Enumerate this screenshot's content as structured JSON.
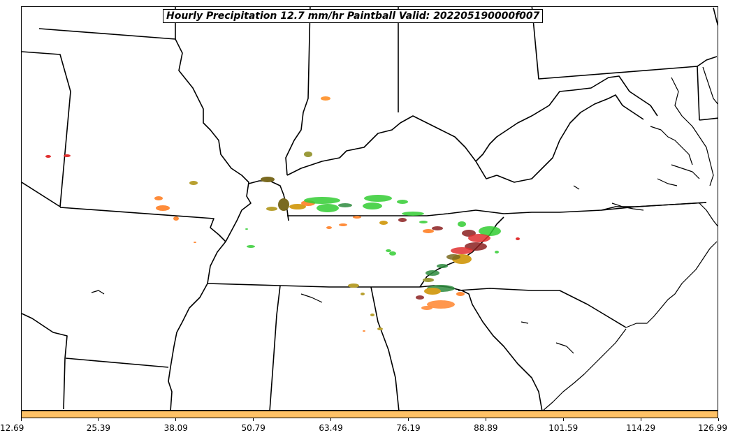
{
  "title": "Hourly Precipitation 12.7 mm/hr Paintball Valid: 202205190000f007",
  "colorbar": {
    "color": "#ffc266",
    "tick_labels": [
      "12.69",
      "25.39",
      "38.09",
      "50.79",
      "63.49",
      "76.19",
      "88.89",
      "101.59",
      "114.29",
      "126.99"
    ]
  },
  "colors": {
    "boundary": "#000000",
    "blob_palette": [
      "#33cc33",
      "#e03030",
      "#ff8c3a",
      "#b8a030",
      "#2e8b3e",
      "#8b2020",
      "#d4a020",
      "#7a6a20",
      "#9a9a3a"
    ]
  },
  "icons": [
    "state-boundaries",
    "coastline",
    "precip-paintball-blobs"
  ]
}
